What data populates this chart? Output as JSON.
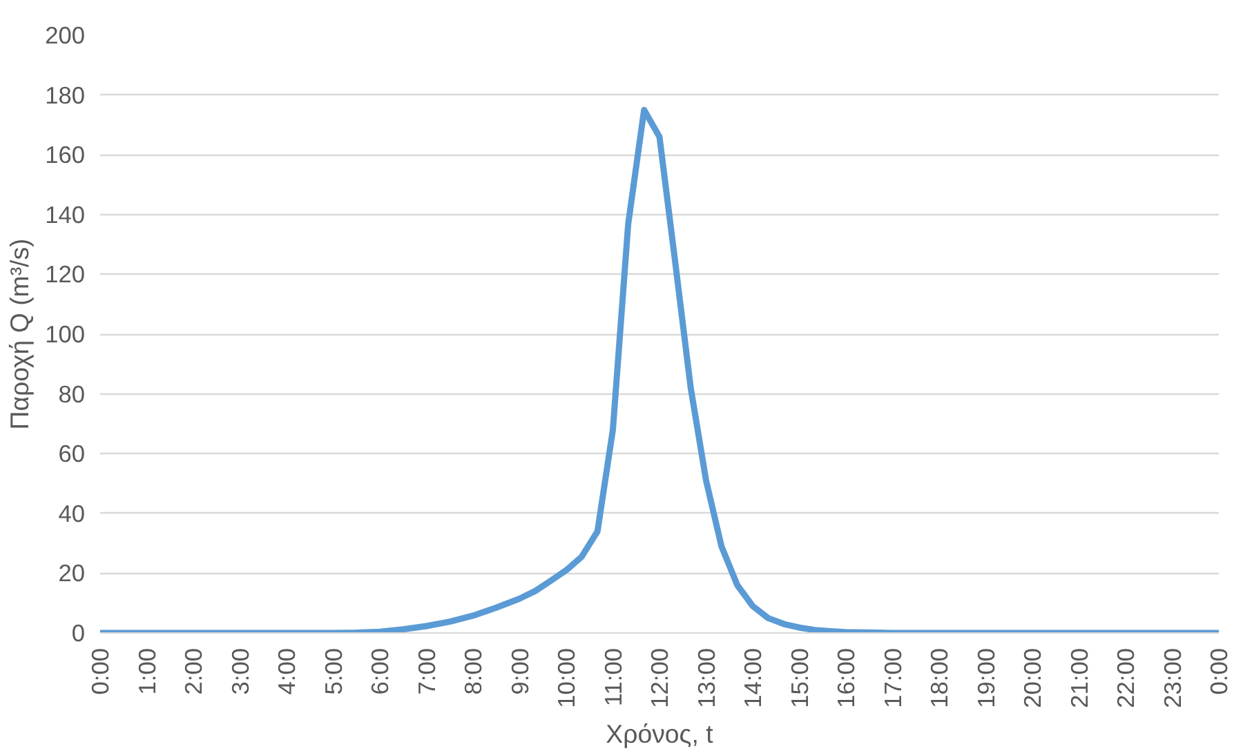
{
  "chart_data": {
    "type": "line",
    "xlabel": "Χρόνος, t",
    "ylabel": "Παροχή Q (m³/s)",
    "series": [
      {
        "color": "#5b9bd5",
        "x": [
          0,
          1,
          2,
          3,
          4,
          5,
          5.5,
          6,
          6.5,
          7,
          7.5,
          8,
          8.5,
          9,
          9.33,
          9.67,
          10,
          10.33,
          10.67,
          11,
          11.33,
          11.67,
          12,
          12.33,
          12.67,
          13,
          13.33,
          13.67,
          14,
          14.33,
          14.67,
          15,
          15.33,
          15.67,
          16,
          17,
          18,
          19,
          20,
          21,
          22,
          23,
          24
        ],
        "values": [
          0,
          0,
          0,
          0,
          0,
          0,
          0.1,
          0.4,
          1.2,
          2.3,
          3.8,
          5.8,
          8.5,
          11.5,
          14,
          17.5,
          21,
          25.5,
          34,
          68,
          137,
          175,
          166,
          125,
          82,
          51,
          29,
          16,
          9,
          5,
          3,
          1.8,
          1,
          0.6,
          0.3,
          0,
          0,
          0,
          0,
          0,
          0,
          0,
          0
        ]
      }
    ],
    "xlim": [
      0,
      24
    ],
    "ylim": [
      0,
      200
    ],
    "xticks": [
      {
        "value": 0,
        "label": "0:00"
      },
      {
        "value": 1,
        "label": "1:00"
      },
      {
        "value": 2,
        "label": "2:00"
      },
      {
        "value": 3,
        "label": "3:00"
      },
      {
        "value": 4,
        "label": "4:00"
      },
      {
        "value": 5,
        "label": "5:00"
      },
      {
        "value": 6,
        "label": "6:00"
      },
      {
        "value": 7,
        "label": "7:00"
      },
      {
        "value": 8,
        "label": "8:00"
      },
      {
        "value": 9,
        "label": "9:00"
      },
      {
        "value": 10,
        "label": "10:00"
      },
      {
        "value": 11,
        "label": "11:00"
      },
      {
        "value": 12,
        "label": "12:00"
      },
      {
        "value": 13,
        "label": "13:00"
      },
      {
        "value": 14,
        "label": "14:00"
      },
      {
        "value": 15,
        "label": "15:00"
      },
      {
        "value": 16,
        "label": "16:00"
      },
      {
        "value": 17,
        "label": "17:00"
      },
      {
        "value": 18,
        "label": "18:00"
      },
      {
        "value": 19,
        "label": "19:00"
      },
      {
        "value": 20,
        "label": "20:00"
      },
      {
        "value": 21,
        "label": "21:00"
      },
      {
        "value": 22,
        "label": "22:00"
      },
      {
        "value": 23,
        "label": "23:00"
      },
      {
        "value": 24,
        "label": "0:00"
      }
    ],
    "yticks": [
      0,
      20,
      40,
      60,
      80,
      100,
      120,
      140,
      160,
      180,
      200
    ],
    "grid": "y",
    "marker": "none",
    "line_style": "solid"
  }
}
